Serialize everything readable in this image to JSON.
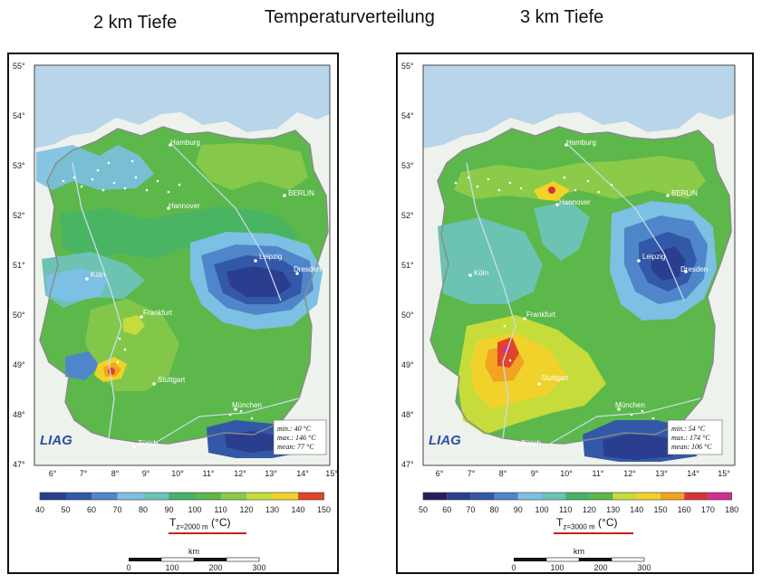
{
  "headings": {
    "left": "2 km Tiefe",
    "center": "Temperaturverteilung",
    "right": "3 km Tiefe"
  },
  "lat_ticks": [
    "55°",
    "54°",
    "53°",
    "52°",
    "51°",
    "50°",
    "49°",
    "48°",
    "47°"
  ],
  "lon_ticks": [
    "6°",
    "7°",
    "8°",
    "9°",
    "10°",
    "11°",
    "12°",
    "13°",
    "14°",
    "15°"
  ],
  "cities": [
    "Hamburg",
    "Hannover",
    "BERLIN",
    "Leipzig",
    "Dresden",
    "Köln",
    "Frankfurt",
    "Stuttgart",
    "München",
    "Zürich"
  ],
  "colors": {
    "sea": "#b9d5ea",
    "land_outside": "#eef2ec",
    "border_line": "#8a8a8a",
    "river": "#c9dcef",
    "scale": {
      "40": "#2a3d8f",
      "50": "#3358a8",
      "60": "#4f86c9",
      "70": "#7cc0e3",
      "80": "#6cc3b3",
      "90": "#43b36b",
      "100": "#5cb84a",
      "110": "#8cca4a",
      "120": "#c6dc3a",
      "130": "#f1d22a",
      "140": "#f1a321",
      "150": "#e0452a",
      "160": "#d8323a",
      "170": "#c8265e",
      "180": "#cf2f92"
    }
  },
  "logo": "LIAG",
  "left_map": {
    "stats": {
      "min": "min.: 40 °C",
      "max": "max.: 146 °C",
      "mean": "mean: 77 °C"
    },
    "colorbar_ticks": [
      "40",
      "50",
      "60",
      "70",
      "80",
      "90",
      "100",
      "110",
      "120",
      "130",
      "140",
      "150"
    ],
    "axis_label_main": "T",
    "axis_label_sub": "z=2000 m",
    "axis_label_unit": "(°C)",
    "scale_title": "km",
    "scale_ticks": [
      "0",
      "100",
      "200",
      "300"
    ]
  },
  "right_map": {
    "stats": {
      "min": "min.: 54 °C",
      "max": "max.: 174 °C",
      "mean": "mean: 106 °C"
    },
    "colorbar_ticks": [
      "50",
      "60",
      "70",
      "80",
      "90",
      "100",
      "110",
      "120",
      "130",
      "140",
      "150",
      "160",
      "170",
      "180"
    ],
    "axis_label_main": "T",
    "axis_label_sub": "z=3000 m",
    "axis_label_unit": "(°C)",
    "scale_title": "km",
    "scale_ticks": [
      "0",
      "100",
      "200",
      "300"
    ]
  }
}
